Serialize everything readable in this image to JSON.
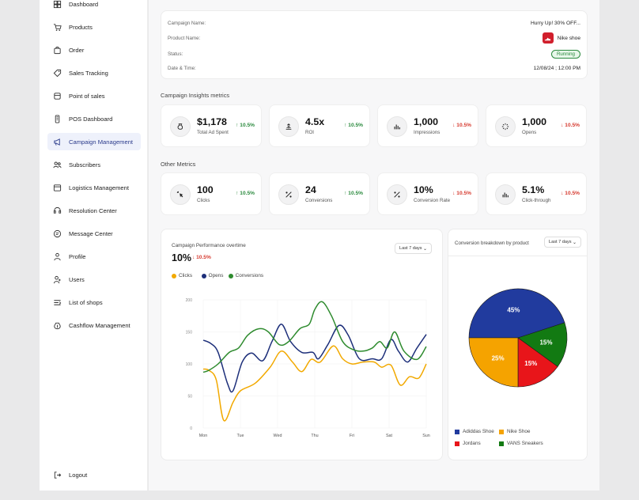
{
  "sidebar": {
    "items": [
      {
        "label": "Dashboard",
        "icon": "grid-icon",
        "active": false
      },
      {
        "label": "Products",
        "icon": "cart-icon",
        "active": false
      },
      {
        "label": "Order",
        "icon": "bag-icon",
        "active": false
      },
      {
        "label": "Sales Tracking",
        "icon": "tag-icon",
        "active": false
      },
      {
        "label": "Point of sales",
        "icon": "store-icon",
        "active": false
      },
      {
        "label": "POS Dashboard",
        "icon": "device-icon",
        "active": false
      },
      {
        "label": "Campaign Management",
        "icon": "megaphone-icon",
        "active": true
      },
      {
        "label": "Subscribers",
        "icon": "users-icon",
        "active": false
      },
      {
        "label": "Logistics Management",
        "icon": "truck-icon",
        "active": false
      },
      {
        "label": "Resolution Center",
        "icon": "headset-icon",
        "active": false
      },
      {
        "label": "Message Center",
        "icon": "chat-icon",
        "active": false
      },
      {
        "label": "Profile",
        "icon": "user-icon",
        "active": false
      },
      {
        "label": "Users",
        "icon": "user-plus-icon",
        "active": false
      },
      {
        "label": "List of shops",
        "icon": "list-icon",
        "active": false
      },
      {
        "label": "Cashflow Management",
        "icon": "money-icon",
        "active": false
      }
    ],
    "logout": "Logout"
  },
  "campaign_info": {
    "name_label": "Campaign Name:",
    "name_value": "Hurry Up! 30% OFF...",
    "product_label": "Product Name:",
    "product_value": "Nike shoe",
    "status_label": "Status:",
    "status_value": "Running",
    "date_label": "Date & Time:",
    "date_value": "12/08/24 ; 12:00 PM"
  },
  "insights": {
    "title": "Campaign Insights metrics",
    "metrics": [
      {
        "value": "$1,178",
        "label": "Total Ad Spent",
        "change": "10.5%",
        "direction": "up",
        "icon": "moneybag-icon"
      },
      {
        "value": "4.5x",
        "label": "ROI",
        "change": "10.5%",
        "direction": "up",
        "icon": "growth-icon"
      },
      {
        "value": "1,000",
        "label": "Impressions",
        "change": "10.5%",
        "direction": "down",
        "icon": "bars-icon"
      },
      {
        "value": "1,000",
        "label": "Opens",
        "change": "10.5%",
        "direction": "down",
        "icon": "loader-icon"
      }
    ]
  },
  "other": {
    "title": "Other Metrics",
    "metrics": [
      {
        "value": "100",
        "label": "Clicks",
        "change": "10.5%",
        "direction": "up",
        "icon": "click-icon"
      },
      {
        "value": "24",
        "label": "Conversions",
        "change": "10.5%",
        "direction": "up",
        "icon": "percent-icon"
      },
      {
        "value": "10%",
        "label": "Conversion Rate",
        "change": "10.5%",
        "direction": "down",
        "icon": "percent-icon"
      },
      {
        "value": "5.1%",
        "label": "Click-through",
        "change": "10.5%",
        "direction": "down",
        "icon": "bars-icon"
      }
    ]
  },
  "performance": {
    "title": "Campaign Performance overtime",
    "headline": "10%",
    "change": "10.5%",
    "dropdown": "Last 7 days"
  },
  "conversion": {
    "title": "Conversion breakdown by product",
    "dropdown": "Last 7 days"
  },
  "colors": {
    "accent": "#2c3c8c",
    "clicks": "#f2a900",
    "opens": "#1d2f7a",
    "conversions": "#2e8b2e",
    "up": "#2b8a3e",
    "down": "#d63a2f"
  },
  "chart_data": [
    {
      "type": "line",
      "x": [
        "Mon",
        "Tue",
        "Wed",
        "Thu",
        "Fri",
        "Sat",
        "Sun"
      ],
      "yticks": [
        "0",
        "50",
        "100",
        "150",
        "200"
      ],
      "ylim": [
        0,
        200
      ],
      "legend": "top-left",
      "grid": true,
      "series": [
        {
          "name": "Clicks",
          "color": "#f2a900",
          "points": [
            [
              0,
              92
            ],
            [
              0.15,
              90
            ],
            [
              0.35,
              75
            ],
            [
              0.55,
              12
            ],
            [
              0.8,
              40
            ],
            [
              1,
              58
            ],
            [
              1.4,
              70
            ],
            [
              1.8,
              95
            ],
            [
              2.1,
              120
            ],
            [
              2.4,
              103
            ],
            [
              2.65,
              88
            ],
            [
              2.9,
              107
            ],
            [
              3.15,
              103
            ],
            [
              3.5,
              128
            ],
            [
              3.75,
              108
            ],
            [
              4.0,
              100
            ],
            [
              4.3,
              103
            ],
            [
              4.6,
              103
            ],
            [
              4.8,
              95
            ],
            [
              5.05,
              98
            ],
            [
              5.3,
              67
            ],
            [
              5.55,
              80
            ],
            [
              5.8,
              78
            ],
            [
              6.0,
              100
            ]
          ]
        },
        {
          "name": "Opens",
          "color": "#1d2f7a",
          "points": [
            [
              0,
              137
            ],
            [
              0.2,
              132
            ],
            [
              0.4,
              118
            ],
            [
              0.65,
              70
            ],
            [
              0.8,
              58
            ],
            [
              1.05,
              103
            ],
            [
              1.3,
              117
            ],
            [
              1.6,
              105
            ],
            [
              1.85,
              135
            ],
            [
              2.1,
              162
            ],
            [
              2.35,
              135
            ],
            [
              2.65,
              118
            ],
            [
              2.95,
              118
            ],
            [
              3.1,
              108
            ],
            [
              3.35,
              130
            ],
            [
              3.65,
              160
            ],
            [
              3.9,
              145
            ],
            [
              4.2,
              108
            ],
            [
              4.55,
              108
            ],
            [
              4.8,
              108
            ],
            [
              5.05,
              138
            ],
            [
              5.25,
              120
            ],
            [
              5.5,
              103
            ],
            [
              5.75,
              125
            ],
            [
              6.0,
              146
            ]
          ]
        },
        {
          "name": "Conversions",
          "color": "#2e8b2e",
          "points": [
            [
              0,
              87
            ],
            [
              0.15,
              90
            ],
            [
              0.4,
              100
            ],
            [
              0.7,
              118
            ],
            [
              0.95,
              125
            ],
            [
              1.2,
              145
            ],
            [
              1.5,
              155
            ],
            [
              1.75,
              150
            ],
            [
              2.05,
              130
            ],
            [
              2.3,
              135
            ],
            [
              2.6,
              155
            ],
            [
              2.85,
              162
            ],
            [
              3.0,
              185
            ],
            [
              3.2,
              197
            ],
            [
              3.45,
              175
            ],
            [
              3.75,
              135
            ],
            [
              4.05,
              122
            ],
            [
              4.3,
              120
            ],
            [
              4.55,
              125
            ],
            [
              4.75,
              135
            ],
            [
              4.95,
              125
            ],
            [
              5.15,
              150
            ],
            [
              5.4,
              120
            ],
            [
              5.75,
              107
            ],
            [
              6.0,
              127
            ]
          ]
        }
      ]
    },
    {
      "type": "pie",
      "categories": [
        "Adiddas Shoe",
        "Nike Shoe",
        "Jordans",
        "VANS Sneakers"
      ],
      "values": [
        45,
        25,
        15,
        15
      ],
      "labels": [
        "45%",
        "25%",
        "15%",
        "15%"
      ],
      "colors": [
        "#213b9e",
        "#f5a300",
        "#e8151a",
        "#127a12"
      ],
      "legend": "bottom"
    }
  ]
}
